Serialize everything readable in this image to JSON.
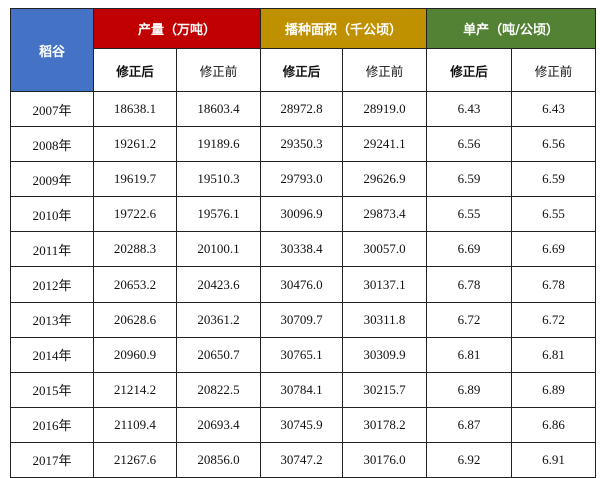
{
  "header": {
    "row_label": "稻谷",
    "groups": [
      {
        "label": "产量（万吨）",
        "color": "#c00000"
      },
      {
        "label": "播种面积（千公顷）",
        "color": "#bf9000"
      },
      {
        "label": "单产（吨/公顷）",
        "color": "#548235"
      }
    ],
    "row_label_color": "#4472c4",
    "sub": [
      "修正后",
      "修正前",
      "修正后",
      "修正前",
      "修正后",
      "修正前"
    ]
  },
  "rows": [
    {
      "year": "2007年",
      "v": [
        "18638.1",
        "18603.4",
        "28972.8",
        "28919.0",
        "6.43",
        "6.43"
      ]
    },
    {
      "year": "2008年",
      "v": [
        "19261.2",
        "19189.6",
        "29350.3",
        "29241.1",
        "6.56",
        "6.56"
      ]
    },
    {
      "year": "2009年",
      "v": [
        "19619.7",
        "19510.3",
        "29793.0",
        "29626.9",
        "6.59",
        "6.59"
      ]
    },
    {
      "year": "2010年",
      "v": [
        "19722.6",
        "19576.1",
        "30096.9",
        "29873.4",
        "6.55",
        "6.55"
      ]
    },
    {
      "year": "2011年",
      "v": [
        "20288.3",
        "20100.1",
        "30338.4",
        "30057.0",
        "6.69",
        "6.69"
      ]
    },
    {
      "year": "2012年",
      "v": [
        "20653.2",
        "20423.6",
        "30476.0",
        "30137.1",
        "6.78",
        "6.78"
      ]
    },
    {
      "year": "2013年",
      "v": [
        "20628.6",
        "20361.2",
        "30709.7",
        "30311.8",
        "6.72",
        "6.72"
      ]
    },
    {
      "year": "2014年",
      "v": [
        "20960.9",
        "20650.7",
        "30765.1",
        "30309.9",
        "6.81",
        "6.81"
      ]
    },
    {
      "year": "2015年",
      "v": [
        "21214.2",
        "20822.5",
        "30784.1",
        "30215.7",
        "6.89",
        "6.89"
      ]
    },
    {
      "year": "2016年",
      "v": [
        "21109.4",
        "20693.4",
        "30745.9",
        "30178.2",
        "6.87",
        "6.86"
      ]
    },
    {
      "year": "2017年",
      "v": [
        "21267.6",
        "20856.0",
        "30747.2",
        "30176.0",
        "6.92",
        "6.91"
      ]
    }
  ]
}
